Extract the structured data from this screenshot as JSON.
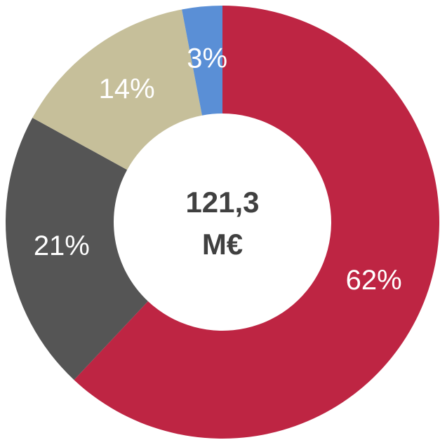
{
  "chart_data": {
    "type": "donut",
    "values": [
      62,
      21,
      14,
      3
    ],
    "value_labels": [
      "62%",
      "21%",
      "14%",
      "3%"
    ],
    "colors": [
      "#be2543",
      "#555555",
      "#c6bf9a",
      "#5a8fd6"
    ],
    "center_text": [
      "121,3",
      "M€"
    ]
  }
}
